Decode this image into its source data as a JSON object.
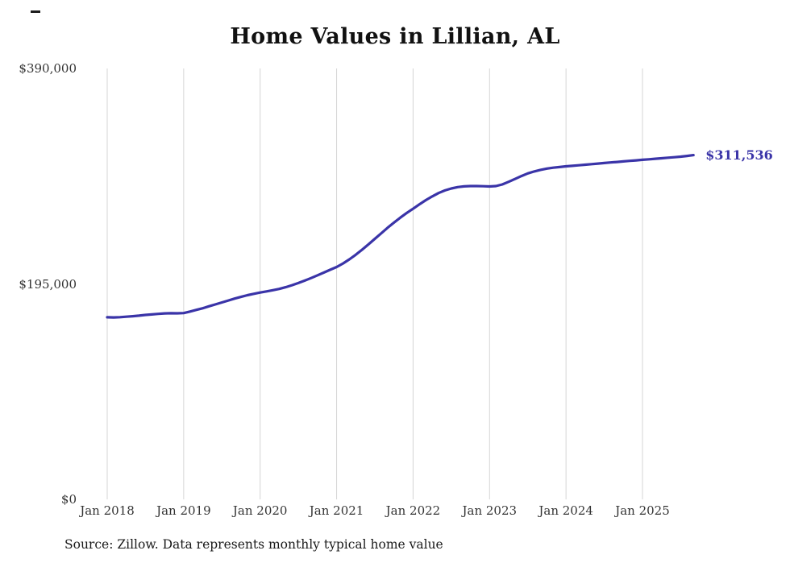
{
  "title": "Home Values in Lillian, AL",
  "source_note": "Source: Zillow. Data represents monthly typical home value",
  "chart_data": {
    "type": "line",
    "title": "Home Values in Lillian, AL",
    "x_start": "Jan 2018",
    "x_end": "Sep 2025",
    "x_interval": "monthly",
    "x_tick_labels": [
      "Jan 2018",
      "Jan 2019",
      "Jan 2020",
      "Jan 2021",
      "Jan 2022",
      "Jan 2023",
      "Jan 2024",
      "Jan 2025"
    ],
    "y_tick_labels": [
      "$0",
      "$195,000",
      "$390,000"
    ],
    "ylim": [
      0,
      390000
    ],
    "grid": "vertical",
    "grid_color": "#d4d4d4",
    "line_color": "#3a34a8",
    "last_value": 311536,
    "last_value_label": "$311,536",
    "series": [
      {
        "name": "Typical home value",
        "values": [
          164800,
          164700,
          164900,
          165300,
          165800,
          166300,
          166900,
          167400,
          167900,
          168300,
          168500,
          168400,
          168600,
          170000,
          171500,
          173000,
          174800,
          176500,
          178200,
          180000,
          181700,
          183300,
          184800,
          186000,
          187200,
          188200,
          189300,
          190500,
          192000,
          193800,
          195800,
          198000,
          200300,
          202800,
          205300,
          207800,
          210300,
          213500,
          217200,
          221400,
          226000,
          230800,
          235800,
          240800,
          245800,
          250500,
          255000,
          259200,
          263000,
          267000,
          270800,
          274200,
          277200,
          279600,
          281400,
          282600,
          283300,
          283600,
          283600,
          283400,
          283200,
          283600,
          285000,
          287400,
          290000,
          292600,
          295000,
          296800,
          298200,
          299400,
          300200,
          300800,
          301400,
          301900,
          302400,
          302900,
          303400,
          303900,
          304400,
          304900,
          305400,
          305900,
          306400,
          306800,
          307300,
          307800,
          308300,
          308700,
          309200,
          309700,
          310200,
          310800,
          311536
        ]
      }
    ]
  }
}
